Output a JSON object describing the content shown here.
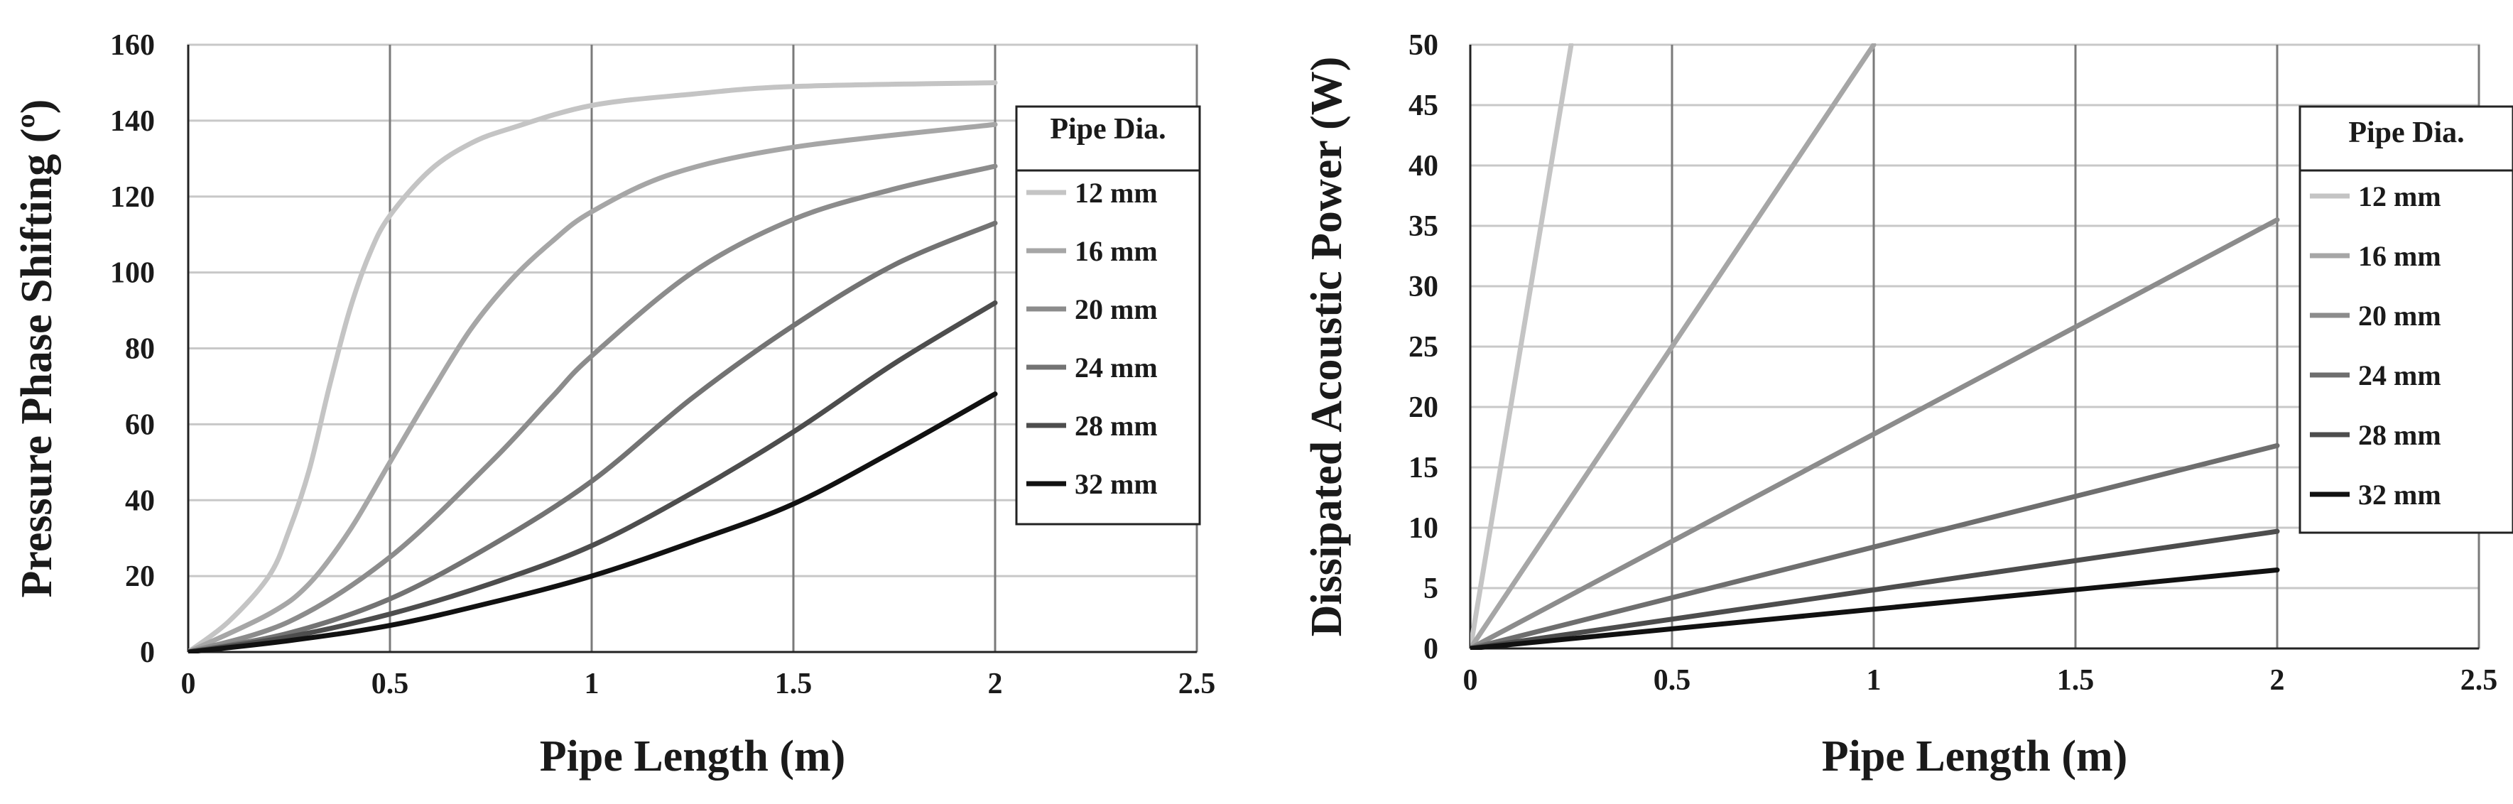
{
  "chart_data": [
    {
      "type": "line",
      "xlabel": "Pipe Length (m)",
      "ylabel": "Pressure Phase Shifting (º)",
      "xlim": [
        0,
        2.5
      ],
      "ylim": [
        0,
        160
      ],
      "xticks": [
        0,
        0.5,
        1,
        1.5,
        2,
        2.5
      ],
      "xtick_labels": [
        "0",
        "0.5",
        "1",
        "1.5",
        "2",
        "2.5"
      ],
      "yticks": [
        0,
        20,
        40,
        60,
        80,
        100,
        120,
        140,
        160
      ],
      "ytick_labels": [
        "0",
        "20",
        "40",
        "60",
        "80",
        "100",
        "120",
        "140",
        "160"
      ],
      "grid": true,
      "legend_title": "Pipe Dia.",
      "legend_position": "right",
      "series": [
        {
          "name": "12 mm",
          "color": "#c4c4c4",
          "x": [
            0,
            0.1,
            0.2,
            0.25,
            0.3,
            0.35,
            0.4,
            0.45,
            0.5,
            0.6,
            0.7,
            0.8,
            1.0,
            1.25,
            1.5,
            2.0
          ],
          "y": [
            0,
            8,
            20,
            32,
            48,
            70,
            90,
            105,
            115,
            127,
            134,
            138,
            144,
            147,
            149,
            150
          ]
        },
        {
          "name": "16 mm",
          "color": "#a6a6a6",
          "x": [
            0,
            0.2,
            0.3,
            0.4,
            0.5,
            0.6,
            0.7,
            0.8,
            0.9,
            1.0,
            1.2,
            1.5,
            2.0
          ],
          "y": [
            0,
            10,
            18,
            32,
            50,
            68,
            85,
            98,
            108,
            116,
            126,
            133,
            139
          ]
        },
        {
          "name": "20 mm",
          "color": "#8c8c8c",
          "x": [
            0,
            0.25,
            0.5,
            0.75,
            0.9,
            1.0,
            1.25,
            1.5,
            1.75,
            2.0
          ],
          "y": [
            0,
            8,
            25,
            50,
            67,
            78,
            100,
            114,
            122,
            128
          ]
        },
        {
          "name": "24 mm",
          "color": "#737373",
          "x": [
            0,
            0.25,
            0.5,
            0.75,
            1.0,
            1.25,
            1.5,
            1.75,
            2.0
          ],
          "y": [
            0,
            5,
            14,
            28,
            45,
            67,
            86,
            102,
            113
          ]
        },
        {
          "name": "28 mm",
          "color": "#4d4d4d",
          "x": [
            0,
            0.25,
            0.5,
            0.75,
            1.0,
            1.25,
            1.5,
            1.75,
            2.0
          ],
          "y": [
            0,
            4,
            10,
            18,
            28,
            42,
            58,
            76,
            92
          ]
        },
        {
          "name": "32 mm",
          "color": "#111111",
          "x": [
            0,
            0.25,
            0.5,
            0.75,
            1.0,
            1.25,
            1.5,
            1.75,
            2.0
          ],
          "y": [
            0,
            3,
            7,
            13,
            20,
            29,
            39,
            53,
            68
          ]
        }
      ]
    },
    {
      "type": "line",
      "xlabel": "Pipe Length (m)",
      "ylabel": "Dissipated Acoustic Power (W)",
      "xlim": [
        0,
        2.5
      ],
      "ylim": [
        0,
        50
      ],
      "xticks": [
        0,
        0.5,
        1,
        1.5,
        2,
        2.5
      ],
      "xtick_labels": [
        "0",
        "0.5",
        "1",
        "1.5",
        "2",
        "2.5"
      ],
      "yticks": [
        0,
        5,
        10,
        15,
        20,
        25,
        30,
        35,
        40,
        45,
        50
      ],
      "ytick_labels": [
        "0",
        "5",
        "10",
        "15",
        "20",
        "25",
        "30",
        "35",
        "40",
        "45",
        "50"
      ],
      "grid": true,
      "legend_title": "Pipe Dia.",
      "legend_position": "right",
      "series": [
        {
          "name": "12 mm",
          "color": "#c4c4c4",
          "x": [
            0,
            0.25
          ],
          "y": [
            0,
            50
          ]
        },
        {
          "name": "16 mm",
          "color": "#a6a6a6",
          "x": [
            0,
            1.0
          ],
          "y": [
            0,
            50
          ]
        },
        {
          "name": "20 mm",
          "color": "#8c8c8c",
          "x": [
            0,
            2.0
          ],
          "y": [
            0,
            35.5
          ]
        },
        {
          "name": "24 mm",
          "color": "#6e6e6e",
          "x": [
            0,
            2.0
          ],
          "y": [
            0,
            16.8
          ]
        },
        {
          "name": "28 mm",
          "color": "#4d4d4d",
          "x": [
            0,
            2.0
          ],
          "y": [
            0,
            9.7
          ]
        },
        {
          "name": "32 mm",
          "color": "#111111",
          "x": [
            0,
            2.0
          ],
          "y": [
            0,
            6.5
          ]
        }
      ]
    }
  ]
}
